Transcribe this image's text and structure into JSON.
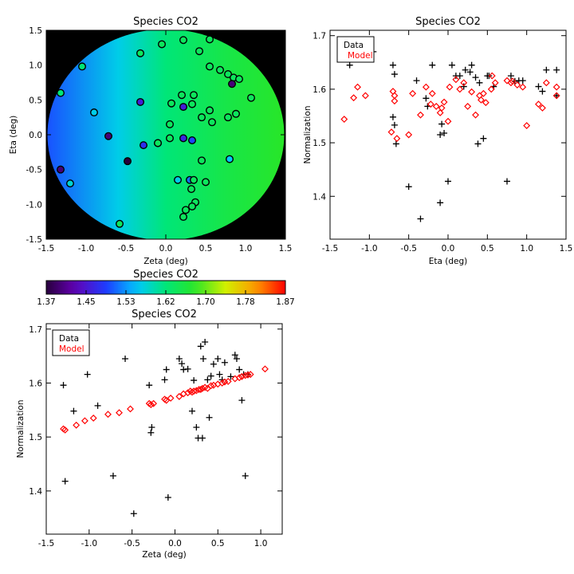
{
  "colors": {
    "data": "#000000",
    "model": "#ff0000",
    "frame": "#000000",
    "background": "#000000"
  },
  "colorbar": {
    "title": "Species CO2",
    "min": 1.37,
    "max": 1.87,
    "ticks": [
      "1.37",
      "1.45",
      "1.53",
      "1.62",
      "1.70",
      "1.78",
      "1.87"
    ],
    "colormap": "rainbow"
  },
  "chart_data": [
    {
      "id": "map",
      "type": "scatter",
      "title": "Species CO2",
      "xlabel": "Zeta (deg)",
      "ylabel": "Eta (deg)",
      "xlim": [
        -1.5,
        1.5
      ],
      "ylim": [
        -1.5,
        1.5
      ],
      "xticks": [
        "-1.5",
        "-1.0",
        "-0.5",
        "0.0",
        "0.5",
        "1.0",
        "1.5"
      ],
      "yticks": [
        "-1.5",
        "-1.0",
        "-0.5",
        "0.0",
        "0.5",
        "1.0",
        "1.5"
      ],
      "points": [
        {
          "zeta": -0.05,
          "eta": 1.3,
          "value": 1.64
        },
        {
          "zeta": -0.32,
          "eta": 1.17,
          "value": 1.64
        },
        {
          "zeta": 0.22,
          "eta": 1.36,
          "value": 1.64
        },
        {
          "zeta": 0.55,
          "eta": 1.37,
          "value": 1.64
        },
        {
          "zeta": 0.42,
          "eta": 1.2,
          "value": 1.64
        },
        {
          "zeta": 0.55,
          "eta": 0.98,
          "value": 1.64
        },
        {
          "zeta": 0.68,
          "eta": 0.93,
          "value": 1.64
        },
        {
          "zeta": -1.05,
          "eta": 0.98,
          "value": 1.62
        },
        {
          "zeta": 0.78,
          "eta": 0.87,
          "value": 1.64
        },
        {
          "zeta": 0.85,
          "eta": 0.82,
          "value": 1.64
        },
        {
          "zeta": 0.92,
          "eta": 0.8,
          "value": 1.64
        },
        {
          "zeta": 0.83,
          "eta": 0.73,
          "value": 1.4
        },
        {
          "zeta": -1.32,
          "eta": 0.6,
          "value": 1.62
        },
        {
          "zeta": 1.07,
          "eta": 0.53,
          "value": 1.64
        },
        {
          "zeta": 0.2,
          "eta": 0.57,
          "value": 1.64
        },
        {
          "zeta": 0.35,
          "eta": 0.57,
          "value": 1.64
        },
        {
          "zeta": -0.32,
          "eta": 0.47,
          "value": 1.46
        },
        {
          "zeta": 0.07,
          "eta": 0.45,
          "value": 1.64
        },
        {
          "zeta": 0.33,
          "eta": 0.44,
          "value": 1.64
        },
        {
          "zeta": 0.22,
          "eta": 0.4,
          "value": 1.46
        },
        {
          "zeta": -0.9,
          "eta": 0.32,
          "value": 1.57
        },
        {
          "zeta": 0.55,
          "eta": 0.35,
          "value": 1.64
        },
        {
          "zeta": 0.88,
          "eta": 0.3,
          "value": 1.64
        },
        {
          "zeta": 0.45,
          "eta": 0.25,
          "value": 1.64
        },
        {
          "zeta": 0.78,
          "eta": 0.25,
          "value": 1.64
        },
        {
          "zeta": 0.58,
          "eta": 0.18,
          "value": 1.64
        },
        {
          "zeta": 0.05,
          "eta": 0.15,
          "value": 1.64
        },
        {
          "zeta": -0.72,
          "eta": -0.02,
          "value": 1.4
        },
        {
          "zeta": 0.22,
          "eta": -0.05,
          "value": 1.47
        },
        {
          "zeta": 0.33,
          "eta": -0.08,
          "value": 1.5
        },
        {
          "zeta": 0.05,
          "eta": -0.05,
          "value": 1.64
        },
        {
          "zeta": -0.28,
          "eta": -0.15,
          "value": 1.48
        },
        {
          "zeta": -0.1,
          "eta": -0.12,
          "value": 1.37
        },
        {
          "zeta": -0.1,
          "eta": -0.12,
          "value": 1.64
        },
        {
          "zeta": -0.48,
          "eta": -0.38,
          "value": 1.37
        },
        {
          "zeta": 0.45,
          "eta": -0.37,
          "value": 1.64
        },
        {
          "zeta": 0.8,
          "eta": -0.35,
          "value": 1.56
        },
        {
          "zeta": -1.32,
          "eta": -0.5,
          "value": 1.4
        },
        {
          "zeta": 0.15,
          "eta": -0.65,
          "value": 1.57
        },
        {
          "zeta": 0.3,
          "eta": -0.65,
          "value": 1.52
        },
        {
          "zeta": 0.35,
          "eta": -0.65,
          "value": 1.64
        },
        {
          "zeta": 0.5,
          "eta": -0.68,
          "value": 1.64
        },
        {
          "zeta": -1.2,
          "eta": -0.7,
          "value": 1.58
        },
        {
          "zeta": 0.32,
          "eta": -0.78,
          "value": 1.64
        },
        {
          "zeta": 0.37,
          "eta": -0.97,
          "value": 1.64
        },
        {
          "zeta": 0.33,
          "eta": -1.03,
          "value": 1.64
        },
        {
          "zeta": 0.25,
          "eta": -1.08,
          "value": 1.64
        },
        {
          "zeta": 0.22,
          "eta": -1.18,
          "value": 1.64
        },
        {
          "zeta": -0.58,
          "eta": -1.28,
          "value": 1.64
        }
      ]
    },
    {
      "id": "eta",
      "type": "scatter",
      "title": "Species CO2",
      "xlabel": "Eta (deg)",
      "ylabel": "Normalization",
      "xlim": [
        -1.5,
        1.5
      ],
      "ylim": [
        1.32,
        1.71
      ],
      "xticks": [
        "-1.5",
        "-1.0",
        "-0.5",
        "0.0",
        "0.5",
        "1.0",
        "1.5"
      ],
      "yticks": [
        "1.4",
        "1.5",
        "1.6",
        "1.7"
      ],
      "legend": {
        "position": "top-left",
        "entries": [
          "Data",
          "Model"
        ]
      },
      "series": [
        {
          "name": "Data",
          "marker": "plus",
          "points": [
            [
              -1.25,
              1.645
            ],
            [
              -1.15,
              1.665
            ],
            [
              -1.05,
              1.675
            ],
            [
              -0.95,
              1.67
            ],
            [
              -0.7,
              1.645
            ],
            [
              -0.68,
              1.628
            ],
            [
              -0.7,
              1.548
            ],
            [
              -0.68,
              1.533
            ],
            [
              -0.66,
              1.498
            ],
            [
              -0.5,
              1.418
            ],
            [
              -0.4,
              1.616
            ],
            [
              -0.35,
              1.358
            ],
            [
              -0.28,
              1.583
            ],
            [
              -0.26,
              1.568
            ],
            [
              -0.2,
              1.645
            ],
            [
              -0.1,
              1.388
            ],
            [
              -0.08,
              1.535
            ],
            [
              -0.05,
              1.518
            ],
            [
              -0.1,
              1.515
            ],
            [
              0.0,
              1.428
            ],
            [
              0.05,
              1.645
            ],
            [
              0.1,
              1.625
            ],
            [
              0.15,
              1.625
            ],
            [
              0.2,
              1.605
            ],
            [
              0.22,
              1.636
            ],
            [
              0.28,
              1.632
            ],
            [
              0.3,
              1.645
            ],
            [
              0.35,
              1.622
            ],
            [
              0.38,
              1.498
            ],
            [
              0.4,
              1.612
            ],
            [
              0.45,
              1.508
            ],
            [
              0.5,
              1.625
            ],
            [
              0.52,
              1.625
            ],
            [
              0.58,
              1.605
            ],
            [
              0.75,
              1.428
            ],
            [
              0.8,
              1.625
            ],
            [
              0.85,
              1.615
            ],
            [
              0.9,
              1.616
            ],
            [
              0.95,
              1.616
            ],
            [
              1.15,
              1.605
            ],
            [
              1.2,
              1.596
            ],
            [
              1.25,
              1.636
            ],
            [
              1.38,
              1.636
            ],
            [
              1.38,
              1.588
            ]
          ]
        },
        {
          "name": "Model",
          "marker": "diamond",
          "points": [
            [
              -1.32,
              1.544
            ],
            [
              -1.2,
              1.584
            ],
            [
              -1.15,
              1.604
            ],
            [
              -1.05,
              1.588
            ],
            [
              -0.72,
              1.52
            ],
            [
              -0.7,
              1.596
            ],
            [
              -0.68,
              1.588
            ],
            [
              -0.68,
              1.578
            ],
            [
              -0.65,
              1.508
            ],
            [
              -0.5,
              1.515
            ],
            [
              -0.45,
              1.592
            ],
            [
              -0.35,
              1.552
            ],
            [
              -0.28,
              1.604
            ],
            [
              -0.22,
              1.572
            ],
            [
              -0.2,
              1.592
            ],
            [
              -0.15,
              1.568
            ],
            [
              -0.1,
              1.556
            ],
            [
              -0.08,
              1.565
            ],
            [
              -0.05,
              1.576
            ],
            [
              0.0,
              1.54
            ],
            [
              0.02,
              1.604
            ],
            [
              0.1,
              1.618
            ],
            [
              0.15,
              1.6
            ],
            [
              0.2,
              1.612
            ],
            [
              0.25,
              1.568
            ],
            [
              0.3,
              1.595
            ],
            [
              0.35,
              1.552
            ],
            [
              0.4,
              1.588
            ],
            [
              0.42,
              1.58
            ],
            [
              0.45,
              1.592
            ],
            [
              0.48,
              1.575
            ],
            [
              0.55,
              1.6
            ],
            [
              0.56,
              1.625
            ],
            [
              0.6,
              1.612
            ],
            [
              0.75,
              1.616
            ],
            [
              0.8,
              1.612
            ],
            [
              0.82,
              1.615
            ],
            [
              0.88,
              1.608
            ],
            [
              0.95,
              1.604
            ],
            [
              1.0,
              1.532
            ],
            [
              1.15,
              1.572
            ],
            [
              1.2,
              1.565
            ],
            [
              1.25,
              1.612
            ],
            [
              1.38,
              1.588
            ],
            [
              1.38,
              1.604
            ]
          ]
        }
      ]
    },
    {
      "id": "zeta",
      "type": "scatter",
      "title": "Species CO2",
      "xlabel": "Zeta (deg)",
      "ylabel": "Normalization",
      "xlim": [
        -1.5,
        1.25
      ],
      "ylim": [
        1.32,
        1.71
      ],
      "xticks": [
        "-1.5",
        "-1.0",
        "-0.5",
        "0.0",
        "0.5",
        "1.0"
      ],
      "yticks": [
        "1.4",
        "1.5",
        "1.6",
        "1.7"
      ],
      "legend": {
        "position": "top-left",
        "entries": [
          "Data",
          "Model"
        ]
      },
      "series": [
        {
          "name": "Data",
          "marker": "plus",
          "points": [
            [
              -1.3,
              1.596
            ],
            [
              -1.28,
              1.418
            ],
            [
              -1.18,
              1.548
            ],
            [
              -1.02,
              1.616
            ],
            [
              -0.9,
              1.558
            ],
            [
              -0.72,
              1.428
            ],
            [
              -0.58,
              1.645
            ],
            [
              -0.48,
              1.358
            ],
            [
              -0.3,
              1.596
            ],
            [
              -0.28,
              1.508
            ],
            [
              -0.27,
              1.518
            ],
            [
              -0.12,
              1.606
            ],
            [
              -0.1,
              1.625
            ],
            [
              -0.08,
              1.388
            ],
            [
              0.05,
              1.645
            ],
            [
              0.08,
              1.636
            ],
            [
              0.1,
              1.625
            ],
            [
              0.15,
              1.626
            ],
            [
              0.2,
              1.548
            ],
            [
              0.22,
              1.605
            ],
            [
              0.25,
              1.518
            ],
            [
              0.27,
              1.498
            ],
            [
              0.3,
              1.668
            ],
            [
              0.32,
              1.498
            ],
            [
              0.33,
              1.645
            ],
            [
              0.35,
              1.676
            ],
            [
              0.38,
              1.606
            ],
            [
              0.4,
              1.536
            ],
            [
              0.42,
              1.613
            ],
            [
              0.45,
              1.635
            ],
            [
              0.5,
              1.645
            ],
            [
              0.52,
              1.616
            ],
            [
              0.55,
              1.606
            ],
            [
              0.58,
              1.638
            ],
            [
              0.65,
              1.612
            ],
            [
              0.7,
              1.652
            ],
            [
              0.72,
              1.645
            ],
            [
              0.75,
              1.625
            ],
            [
              0.78,
              1.568
            ],
            [
              0.8,
              1.616
            ],
            [
              0.82,
              1.428
            ],
            [
              0.85,
              1.616
            ]
          ]
        },
        {
          "name": "Model",
          "marker": "diamond",
          "points": [
            [
              -1.3,
              1.515
            ],
            [
              -1.28,
              1.513
            ],
            [
              -1.15,
              1.522
            ],
            [
              -1.05,
              1.53
            ],
            [
              -0.95,
              1.535
            ],
            [
              -0.78,
              1.542
            ],
            [
              -0.65,
              1.545
            ],
            [
              -0.52,
              1.552
            ],
            [
              -0.3,
              1.562
            ],
            [
              -0.28,
              1.56
            ],
            [
              -0.25,
              1.562
            ],
            [
              -0.12,
              1.57
            ],
            [
              -0.1,
              1.568
            ],
            [
              -0.05,
              1.572
            ],
            [
              0.05,
              1.575
            ],
            [
              0.1,
              1.58
            ],
            [
              0.15,
              1.582
            ],
            [
              0.18,
              1.585
            ],
            [
              0.2,
              1.583
            ],
            [
              0.22,
              1.585
            ],
            [
              0.25,
              1.586
            ],
            [
              0.28,
              1.588
            ],
            [
              0.3,
              1.588
            ],
            [
              0.32,
              1.59
            ],
            [
              0.35,
              1.592
            ],
            [
              0.38,
              1.59
            ],
            [
              0.42,
              1.595
            ],
            [
              0.45,
              1.596
            ],
            [
              0.5,
              1.598
            ],
            [
              0.55,
              1.6
            ],
            [
              0.58,
              1.602
            ],
            [
              0.62,
              1.603
            ],
            [
              0.7,
              1.608
            ],
            [
              0.75,
              1.61
            ],
            [
              0.78,
              1.612
            ],
            [
              0.82,
              1.614
            ],
            [
              0.85,
              1.615
            ],
            [
              0.88,
              1.616
            ],
            [
              1.05,
              1.626
            ]
          ]
        }
      ]
    }
  ]
}
